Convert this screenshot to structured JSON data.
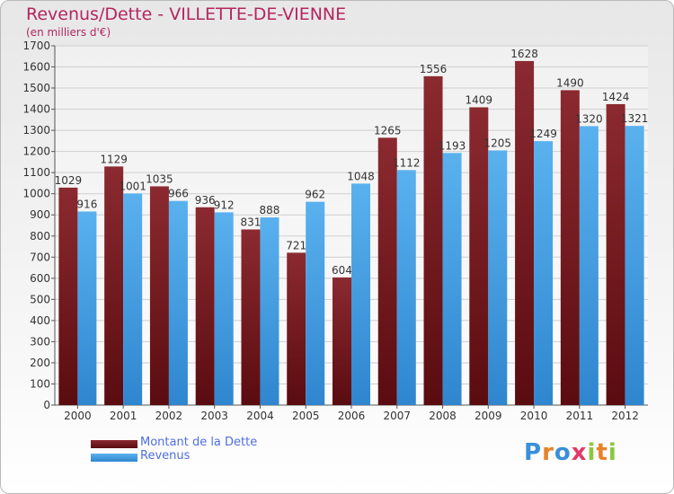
{
  "header": {
    "title": "Revenus/Dette - VILLETTE-DE-VIENNE",
    "subtitle": "(en milliers d'€)"
  },
  "logo": {
    "text": "Proxiti",
    "letters": [
      {
        "ch": "P",
        "color": "#3a8fd8"
      },
      {
        "ch": "r",
        "color": "#e8822a"
      },
      {
        "ch": "o",
        "color": "#3a8fd8"
      },
      {
        "ch": "x",
        "color": "#e03a6a"
      },
      {
        "ch": "i",
        "color": "#8cc63f"
      },
      {
        "ch": "t",
        "color": "#e8822a"
      },
      {
        "ch": "i",
        "color": "#8cc63f"
      }
    ]
  },
  "chart_data": {
    "type": "bar",
    "categories": [
      "2000",
      "2001",
      "2002",
      "2003",
      "2004",
      "2005",
      "2006",
      "2007",
      "2008",
      "2009",
      "2010",
      "2011",
      "2012"
    ],
    "series": [
      {
        "name": "Montant de la Dette",
        "color": "#7a1a22",
        "values": [
          1029,
          1129,
          1035,
          936,
          831,
          721,
          604,
          1265,
          1556,
          1409,
          1628,
          1490,
          1424
        ]
      },
      {
        "name": "Revenus",
        "color": "#3d9be3",
        "values": [
          916,
          1001,
          966,
          912,
          888,
          962,
          1048,
          1112,
          1193,
          1205,
          1249,
          1320,
          1321
        ]
      }
    ],
    "ylim": [
      0,
      1700
    ],
    "yticks": [
      0,
      100,
      200,
      300,
      400,
      500,
      600,
      700,
      800,
      900,
      1000,
      1100,
      1200,
      1300,
      1400,
      1500,
      1600,
      1700
    ],
    "grid": true,
    "legend_position": "bottom-left"
  }
}
